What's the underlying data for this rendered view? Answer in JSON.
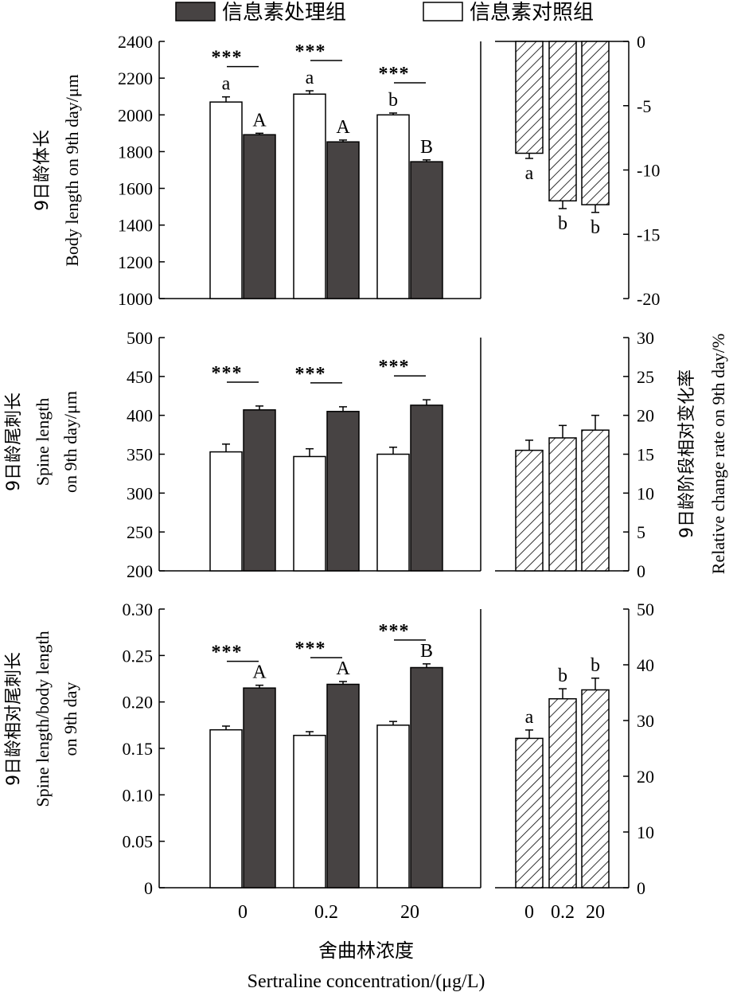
{
  "legend": {
    "treated": "信息素处理组",
    "control": "信息素对照组"
  },
  "x_title_cn": "舍曲林浓度",
  "x_title_en": "Sertraline concentration/(μg/L)",
  "right_title_cn": "9日龄阶段相对变化率",
  "right_title_en": "Relative change rate on 9th day/%",
  "colors": {
    "treated": "#474343",
    "control": "#ffffff",
    "hatch": "#000000"
  },
  "chart_data": [
    {
      "type": "bar",
      "panel": "top-left",
      "ylabel_cn": "9日龄体长",
      "ylabel_en": "Body length on 9th day/μm",
      "categories": [
        "0",
        "0.2",
        "20"
      ],
      "ylim": [
        1000,
        2400
      ],
      "yticks": [
        "1000",
        "1200",
        "1400",
        "1600",
        "1800",
        "2000",
        "2200",
        "2400"
      ],
      "series": [
        {
          "name": "信息素对照组",
          "values": [
            2070,
            2113,
            2000
          ],
          "errors": [
            28,
            18,
            10
          ],
          "letters": [
            "a",
            "a",
            "b"
          ]
        },
        {
          "name": "信息素处理组",
          "values": [
            1892,
            1853,
            1745
          ],
          "errors": [
            8,
            10,
            10
          ],
          "letters": [
            "A",
            "A",
            "B"
          ]
        }
      ],
      "significance": [
        "***",
        "***",
        "***"
      ]
    },
    {
      "type": "bar",
      "panel": "top-right",
      "categories": [
        "0",
        "0.2",
        "20"
      ],
      "ylim": [
        -20,
        0
      ],
      "yticks": [
        "0",
        "-5",
        "-10",
        "-15",
        "-20"
      ],
      "values": [
        -8.7,
        -12.4,
        -12.7
      ],
      "errors": [
        0.4,
        0.6,
        0.6
      ],
      "letters": [
        "a",
        "b",
        "b"
      ]
    },
    {
      "type": "bar",
      "panel": "middle-left",
      "ylabel_cn": "9日龄尾刺长",
      "ylabel_en1": "Spine length",
      "ylabel_en2": "on 9th day/μm",
      "categories": [
        "0",
        "0.2",
        "20"
      ],
      "ylim": [
        200,
        500
      ],
      "yticks": [
        "200",
        "250",
        "300",
        "350",
        "400",
        "450",
        "500"
      ],
      "series": [
        {
          "name": "信息素对照组",
          "values": [
            353,
            347,
            350
          ],
          "errors": [
            10,
            10,
            9
          ]
        },
        {
          "name": "信息素处理组",
          "values": [
            407,
            405,
            413
          ],
          "errors": [
            5,
            6,
            7
          ]
        }
      ],
      "significance": [
        "***",
        "***",
        "***"
      ]
    },
    {
      "type": "bar",
      "panel": "middle-right",
      "categories": [
        "0",
        "0.2",
        "20"
      ],
      "ylim": [
        0,
        30
      ],
      "yticks": [
        "0",
        "5",
        "10",
        "15",
        "20",
        "25",
        "30"
      ],
      "values": [
        15.5,
        17.1,
        18.1
      ],
      "errors": [
        1.3,
        1.6,
        1.9
      ]
    },
    {
      "type": "bar",
      "panel": "bottom-left",
      "ylabel_cn": "9日龄相对尾刺长",
      "ylabel_en1": "Spine length/body length",
      "ylabel_en2": "on 9th day",
      "categories": [
        "0",
        "0.2",
        "20"
      ],
      "ylim": [
        0,
        0.3
      ],
      "yticks": [
        "0",
        "0.05",
        "0.10",
        "0.15",
        "0.20",
        "0.25",
        "0.30"
      ],
      "series": [
        {
          "name": "信息素对照组",
          "values": [
            0.17,
            0.164,
            0.175
          ],
          "errors": [
            0.004,
            0.004,
            0.004
          ]
        },
        {
          "name": "信息素处理组",
          "values": [
            0.215,
            0.219,
            0.237
          ],
          "errors": [
            0.003,
            0.003,
            0.004
          ],
          "letters": [
            "A",
            "A",
            "B"
          ]
        }
      ],
      "significance": [
        "***",
        "***",
        "***"
      ]
    },
    {
      "type": "bar",
      "panel": "bottom-right",
      "categories": [
        "0",
        "0.2",
        "20"
      ],
      "ylim": [
        0,
        50
      ],
      "yticks": [
        "0",
        "10",
        "20",
        "30",
        "40",
        "50"
      ],
      "values": [
        26.8,
        33.9,
        35.5
      ],
      "errors": [
        1.5,
        1.8,
        2.1
      ],
      "letters": [
        "a",
        "b",
        "b"
      ]
    }
  ]
}
